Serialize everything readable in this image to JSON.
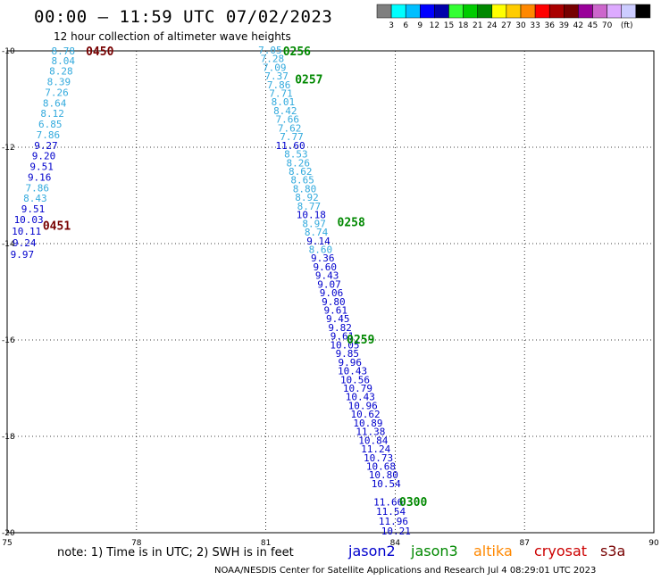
{
  "header": {
    "title": "00:00 – 11:59 UTC 07/02/2023",
    "subtitle": "12 hour collection of altimeter wave heights"
  },
  "colorbar": {
    "colors": [
      "#7f7f7f",
      "#00ffff",
      "#00bfff",
      "#0000ff",
      "#0000aa",
      "#33ff33",
      "#00cc00",
      "#008800",
      "#ffff00",
      "#ffcc00",
      "#ff8800",
      "#ff0000",
      "#aa0000",
      "#770000",
      "#990099",
      "#cc66cc",
      "#ddaaff",
      "#ccccff",
      "#000000"
    ],
    "labels": [
      "3",
      "6",
      "9",
      "12",
      "15",
      "18",
      "21",
      "24",
      "27",
      "30",
      "33",
      "36",
      "39",
      "42",
      "45",
      "70",
      "(ft)"
    ]
  },
  "note": "note: 1) Time is in UTC; 2) SWH is in feet",
  "missions": [
    {
      "name": "jason2",
      "color": "#0000cc"
    },
    {
      "name": "jason3",
      "color": "#008800"
    },
    {
      "name": "altika",
      "color": "#ff8800"
    },
    {
      "name": "cryosat",
      "color": "#cc0000"
    },
    {
      "name": "s3a",
      "color": "#770000"
    }
  ],
  "footer": "NOAA/NESDIS Center for Satellite Applications and Research    Jul  4 08:29:01 UTC 2023",
  "chart_data": {
    "type": "scatter",
    "xlabel": "",
    "ylabel": "",
    "xlim": [
      75,
      90
    ],
    "ylim": [
      -20,
      -10
    ],
    "xticks": [
      75,
      78,
      81,
      84,
      87,
      90
    ],
    "yticks": [
      -10,
      -12,
      -14,
      -16,
      -18,
      -20
    ],
    "xtick_labels": [
      "75",
      "78",
      "81",
      "84",
      "87",
      "90"
    ],
    "ytick_labels": [
      "-10",
      "-12",
      "-14",
      "-16",
      "-18",
      "-20"
    ],
    "grid": true,
    "time_labels": [
      {
        "text": "0450",
        "x": 77.15,
        "y": -10.0,
        "color": "#770000"
      },
      {
        "text": "0451",
        "x": 76.15,
        "y": -13.62,
        "color": "#770000"
      },
      {
        "text": "0256",
        "x": 81.72,
        "y": -10.0,
        "color": "#008800"
      },
      {
        "text": "0257",
        "x": 82.0,
        "y": -10.58,
        "color": "#008800"
      },
      {
        "text": "0258",
        "x": 82.98,
        "y": -13.55,
        "color": "#008800"
      },
      {
        "text": "0259",
        "x": 83.2,
        "y": -15.98,
        "color": "#008800"
      },
      {
        "text": "0300",
        "x": 84.42,
        "y": -19.35,
        "color": "#008800"
      }
    ],
    "series": [
      {
        "name": "",
        "points": [
          {
            "lon": 76.3,
            "lat": -10.0,
            "swh": 8.78
          },
          {
            "lon": 76.3,
            "lat": -10.2,
            "swh": 8.04
          },
          {
            "lon": 76.25,
            "lat": -10.42,
            "swh": 8.28
          },
          {
            "lon": 76.2,
            "lat": -10.64,
            "swh": 8.39
          },
          {
            "lon": 76.15,
            "lat": -10.86,
            "swh": 7.26
          },
          {
            "lon": 76.1,
            "lat": -11.08,
            "swh": 8.64
          },
          {
            "lon": 76.05,
            "lat": -11.3,
            "swh": 8.12
          },
          {
            "lon": 76.0,
            "lat": -11.52,
            "swh": 6.85
          },
          {
            "lon": 75.95,
            "lat": -11.74,
            "swh": 7.86
          },
          {
            "lon": 75.9,
            "lat": -11.96,
            "swh": 9.27
          },
          {
            "lon": 75.85,
            "lat": -12.18,
            "swh": 9.2
          },
          {
            "lon": 75.8,
            "lat": -12.4,
            "swh": 9.51
          },
          {
            "lon": 75.75,
            "lat": -12.62,
            "swh": 9.16
          },
          {
            "lon": 75.7,
            "lat": -12.84,
            "swh": 7.86
          },
          {
            "lon": 75.65,
            "lat": -13.06,
            "swh": 8.43
          },
          {
            "lon": 75.6,
            "lat": -13.28,
            "swh": 9.51
          },
          {
            "lon": 75.5,
            "lat": -13.5,
            "swh": 10.03
          },
          {
            "lon": 75.45,
            "lat": -13.74,
            "swh": 10.11
          },
          {
            "lon": 75.4,
            "lat": -13.98,
            "swh": 9.24
          },
          {
            "lon": 75.35,
            "lat": -14.22,
            "swh": 9.97
          }
        ]
      },
      {
        "name": "",
        "points": [
          {
            "lon": 81.1,
            "lat": -9.98,
            "swh": 7.05
          },
          {
            "lon": 81.15,
            "lat": -10.16,
            "swh": 7.28
          },
          {
            "lon": 81.2,
            "lat": -10.34,
            "swh": 7.09
          },
          {
            "lon": 81.25,
            "lat": -10.52,
            "swh": 7.37
          },
          {
            "lon": 81.3,
            "lat": -10.7,
            "swh": 7.86
          },
          {
            "lon": 81.35,
            "lat": -10.88,
            "swh": 7.71
          },
          {
            "lon": 81.4,
            "lat": -11.06,
            "swh": 8.01
          },
          {
            "lon": 81.45,
            "lat": -11.24,
            "swh": 8.42
          },
          {
            "lon": 81.5,
            "lat": -11.42,
            "swh": 7.66
          },
          {
            "lon": 81.55,
            "lat": -11.6,
            "swh": 7.62
          },
          {
            "lon": 81.6,
            "lat": -11.78,
            "swh": 7.77
          },
          {
            "lon": 81.57,
            "lat": -11.96,
            "swh": 11.6
          },
          {
            "lon": 81.7,
            "lat": -12.14,
            "swh": 8.53
          },
          {
            "lon": 81.75,
            "lat": -12.32,
            "swh": 8.26
          },
          {
            "lon": 81.8,
            "lat": -12.5,
            "swh": 8.62
          },
          {
            "lon": 81.85,
            "lat": -12.68,
            "swh": 8.65
          },
          {
            "lon": 81.9,
            "lat": -12.86,
            "swh": 8.8
          },
          {
            "lon": 81.95,
            "lat": -13.04,
            "swh": 8.92
          },
          {
            "lon": 82.0,
            "lat": -13.22,
            "swh": 8.77
          },
          {
            "lon": 82.05,
            "lat": -13.4,
            "swh": 10.18
          },
          {
            "lon": 82.12,
            "lat": -13.58,
            "swh": 8.97
          },
          {
            "lon": 82.17,
            "lat": -13.76,
            "swh": 8.74
          },
          {
            "lon": 82.22,
            "lat": -13.94,
            "swh": 9.14
          },
          {
            "lon": 82.27,
            "lat": -14.12,
            "swh": 8.6
          },
          {
            "lon": 82.32,
            "lat": -14.3,
            "swh": 9.36
          },
          {
            "lon": 82.37,
            "lat": -14.48,
            "swh": 9.6
          },
          {
            "lon": 82.42,
            "lat": -14.66,
            "swh": 9.43
          },
          {
            "lon": 82.47,
            "lat": -14.84,
            "swh": 9.07
          },
          {
            "lon": 82.52,
            "lat": -15.02,
            "swh": 9.06
          },
          {
            "lon": 82.57,
            "lat": -15.2,
            "swh": 9.8
          },
          {
            "lon": 82.62,
            "lat": -15.38,
            "swh": 9.61
          },
          {
            "lon": 82.67,
            "lat": -15.56,
            "swh": 9.45
          },
          {
            "lon": 82.72,
            "lat": -15.74,
            "swh": 9.82
          },
          {
            "lon": 82.77,
            "lat": -15.92,
            "swh": 9.61
          },
          {
            "lon": 82.83,
            "lat": -16.1,
            "swh": 10.05
          },
          {
            "lon": 82.89,
            "lat": -16.28,
            "swh": 9.85
          },
          {
            "lon": 82.95,
            "lat": -16.46,
            "swh": 9.96
          },
          {
            "lon": 83.01,
            "lat": -16.64,
            "swh": 10.43
          },
          {
            "lon": 83.07,
            "lat": -16.82,
            "swh": 10.56
          },
          {
            "lon": 83.13,
            "lat": -17.0,
            "swh": 10.79
          },
          {
            "lon": 83.19,
            "lat": -17.18,
            "swh": 10.43
          },
          {
            "lon": 83.25,
            "lat": -17.36,
            "swh": 10.96
          },
          {
            "lon": 83.31,
            "lat": -17.54,
            "swh": 10.62
          },
          {
            "lon": 83.37,
            "lat": -17.72,
            "swh": 10.89
          },
          {
            "lon": 83.43,
            "lat": -17.9,
            "swh": 11.38
          },
          {
            "lon": 83.49,
            "lat": -18.08,
            "swh": 10.84
          },
          {
            "lon": 83.55,
            "lat": -18.26,
            "swh": 11.24
          },
          {
            "lon": 83.61,
            "lat": -18.44,
            "swh": 10.73
          },
          {
            "lon": 83.67,
            "lat": -18.62,
            "swh": 10.68
          },
          {
            "lon": 83.73,
            "lat": -18.8,
            "swh": 10.8
          },
          {
            "lon": 83.79,
            "lat": -18.98,
            "swh": 10.54
          },
          {
            "lon": 83.84,
            "lat": -19.36,
            "swh": 11.66
          },
          {
            "lon": 83.9,
            "lat": -19.56,
            "swh": 11.54
          },
          {
            "lon": 83.96,
            "lat": -19.76,
            "swh": 11.96
          },
          {
            "lon": 84.02,
            "lat": -19.96,
            "swh": 10.21
          }
        ]
      }
    ]
  }
}
